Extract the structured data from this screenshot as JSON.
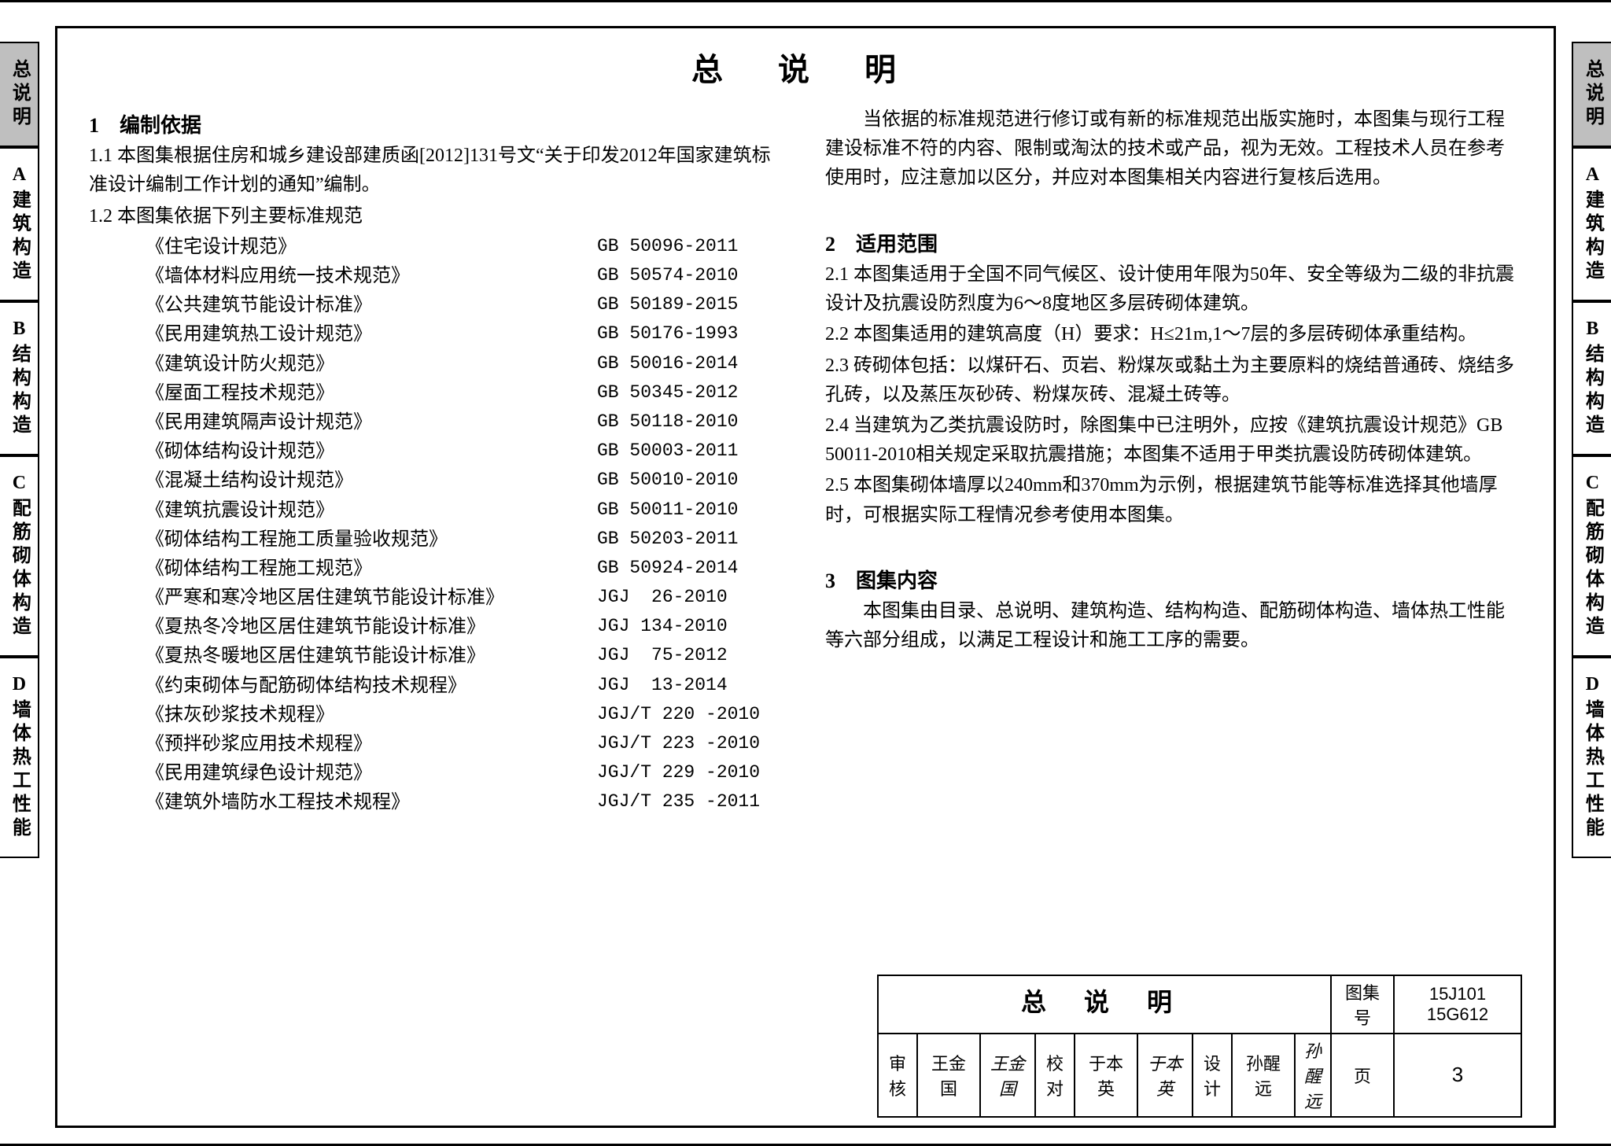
{
  "title": "总 说 明",
  "tabs": [
    {
      "label": "总说明",
      "active": true
    },
    {
      "label": "A建筑构造",
      "active": false
    },
    {
      "label": "B结构构造",
      "active": false
    },
    {
      "label": "C配筋砌体构造",
      "active": false
    },
    {
      "label": "D墙体热工性能",
      "active": false
    }
  ],
  "left": {
    "sec1_head": "1　编制依据",
    "p1_1": "1.1 本图集根据住房和城乡建设部建质函[2012]131号文“关于印发2012年国家建筑标准设计编制工作计划的通知”编制。",
    "p1_2": "1.2 本图集依据下列主要标准规范",
    "standards": [
      {
        "name": "《住宅设计规范》",
        "code": "GB 50096-2011"
      },
      {
        "name": "《墙体材料应用统一技术规范》",
        "code": "GB 50574-2010"
      },
      {
        "name": "《公共建筑节能设计标准》",
        "code": "GB 50189-2015"
      },
      {
        "name": "《民用建筑热工设计规范》",
        "code": "GB 50176-1993"
      },
      {
        "name": "《建筑设计防火规范》",
        "code": "GB 50016-2014"
      },
      {
        "name": "《屋面工程技术规范》",
        "code": "GB 50345-2012"
      },
      {
        "name": "《民用建筑隔声设计规范》",
        "code": "GB 50118-2010"
      },
      {
        "name": "《砌体结构设计规范》",
        "code": "GB 50003-2011"
      },
      {
        "name": "《混凝土结构设计规范》",
        "code": "GB 50010-2010"
      },
      {
        "name": "《建筑抗震设计规范》",
        "code": "GB 50011-2010"
      },
      {
        "name": "《砌体结构工程施工质量验收规范》",
        "code": "GB 50203-2011"
      },
      {
        "name": "《砌体结构工程施工规范》",
        "code": "GB 50924-2014"
      },
      {
        "name": "《严寒和寒冷地区居住建筑节能设计标准》",
        "code": "JGJ  26-2010"
      },
      {
        "name": "《夏热冬冷地区居住建筑节能设计标准》",
        "code": "JGJ 134-2010"
      },
      {
        "name": "《夏热冬暖地区居住建筑节能设计标准》",
        "code": "JGJ  75-2012"
      },
      {
        "name": "《约束砌体与配筋砌体结构技术规程》",
        "code": "JGJ  13-2014"
      },
      {
        "name": "《抹灰砂浆技术规程》",
        "code": "JGJ/T 220 -2010"
      },
      {
        "name": "《预拌砂浆应用技术规程》",
        "code": "JGJ/T 223 -2010"
      },
      {
        "name": "《民用建筑绿色设计规范》",
        "code": "JGJ/T 229 -2010"
      },
      {
        "name": "《建筑外墙防水工程技术规程》",
        "code": "JGJ/T 235 -2011"
      }
    ]
  },
  "right": {
    "p_note": "　　当依据的标准规范进行修订或有新的标准规范出版实施时，本图集与现行工程建设标准不符的内容、限制或淘汰的技术或产品，视为无效。工程技术人员在参考使用时，应注意加以区分，并应对本图集相关内容进行复核后选用。",
    "sec2_head": "2　适用范围",
    "p2_1": "2.1 本图集适用于全国不同气候区、设计使用年限为50年、安全等级为二级的非抗震设计及抗震设防烈度为6～8度地区多层砖砌体建筑。",
    "p2_2": "2.2 本图集适用的建筑高度（H）要求：H≤21m,1～7层的多层砖砌体承重结构。",
    "p2_3": "2.3 砖砌体包括：以煤矸石、页岩、粉煤灰或黏土为主要原料的烧结普通砖、烧结多孔砖，以及蒸压灰砂砖、粉煤灰砖、混凝土砖等。",
    "p2_4": "2.4 当建筑为乙类抗震设防时，除图集中已注明外，应按《建筑抗震设计规范》GB 50011-2010相关规定采取抗震措施；本图集不适用于甲类抗震设防砖砌体建筑。",
    "p2_5": "2.5 本图集砌体墙厚以240mm和370mm为示例，根据建筑节能等标准选择其他墙厚时，可根据实际工程情况参考使用本图集。",
    "sec3_head": "3　图集内容",
    "p3": "　　本图集由目录、总说明、建筑构造、结构构造、配筋砌体构造、墙体热工性能等六部分组成，以满足工程设计和施工工序的需要。"
  },
  "titleblock": {
    "title": "总 说 明",
    "tujihao_label": "图集号",
    "code1": "15J101",
    "code2": "15G612",
    "shenhe": "审核",
    "shenhe_name": "王金国",
    "shenhe_sig": "王金国",
    "jiaodui": "校对",
    "jiaodui_name": "于本英",
    "jiaodui_sig": "于本英",
    "sheji": "设计",
    "sheji_name": "孙醒远",
    "sheji_sig": "孙醒远",
    "ye": "页",
    "page": "3"
  },
  "colors": {
    "tab_active_bg": "#bfbfbf",
    "border": "#000000",
    "background": "#ffffff",
    "text": "#000000"
  },
  "typography": {
    "body_fontsize_pt": 18,
    "title_fontsize_pt": 30,
    "font_family": "SimSun"
  }
}
